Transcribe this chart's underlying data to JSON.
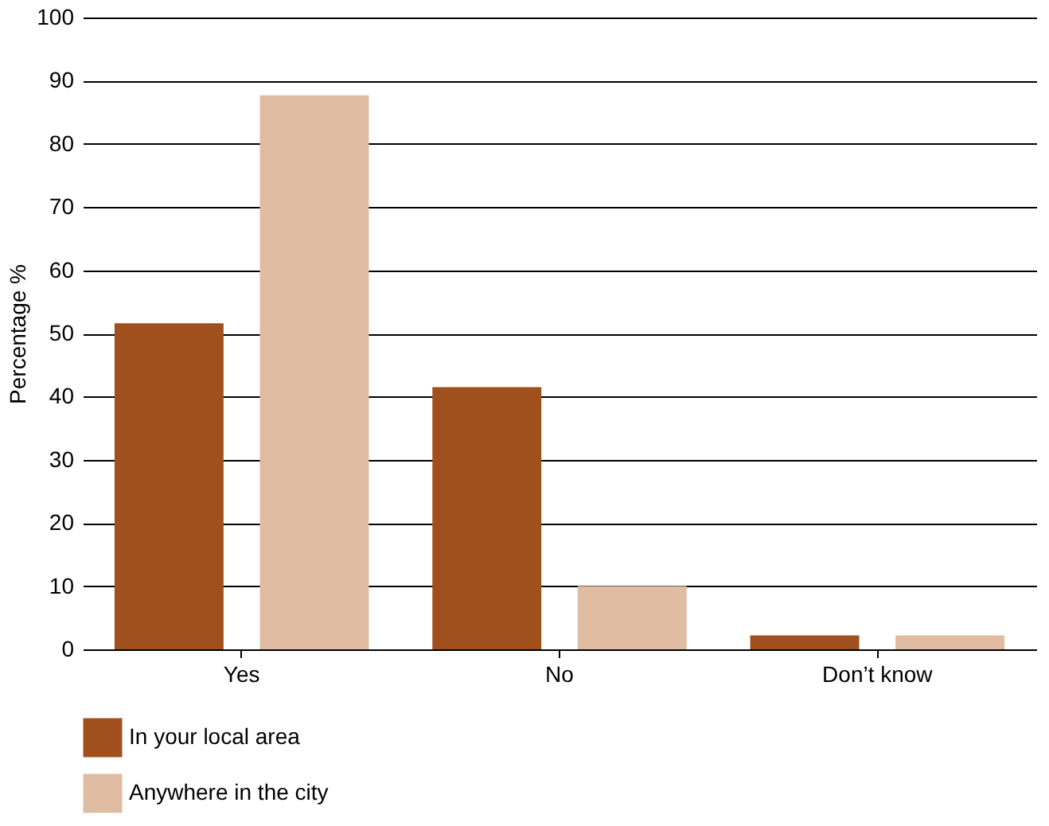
{
  "chart_data": {
    "type": "bar",
    "ylabel": "Percentage %",
    "categories": [
      "Yes",
      "No",
      "Don’t know"
    ],
    "series": [
      {
        "name": "In your local area",
        "color": "#a0501c",
        "values": [
          51.6,
          41.5,
          2.2
        ]
      },
      {
        "name": "Anywhere in the city",
        "color": "#dfbca2",
        "values": [
          87.7,
          10,
          2.2
        ]
      }
    ],
    "ylim": [
      0,
      100
    ],
    "yticks": [
      0,
      10,
      20,
      30,
      40,
      50,
      60,
      70,
      80,
      90,
      100
    ],
    "grid": "y",
    "legend": "bottom left"
  }
}
